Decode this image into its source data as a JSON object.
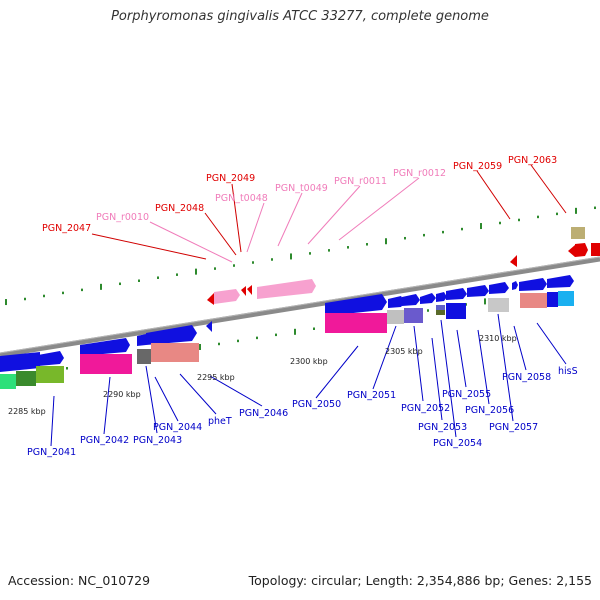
{
  "title": "Porphyromonas gingivalis ATCC 33277, complete genome",
  "footer": {
    "accession": "Accession: NC_010729",
    "stats": "Topology: circular; Length: 2,354,886 bp; Genes: 2,155"
  },
  "colors": {
    "backbone": "#888888",
    "tick": "#2d8a2d",
    "label_gene": "#0000c8",
    "label_highlight": "#e00000",
    "label_rna": "#f07cba",
    "gene_blue": "#0a0ae6",
    "gene_pink": "#f7a1cf"
  },
  "scale_labels": [
    {
      "id": "kbp-2285",
      "text": "2285 kbp"
    },
    {
      "id": "kbp-2290",
      "text": "2290 kbp"
    },
    {
      "id": "kbp-2295",
      "text": "2295 kbp"
    },
    {
      "id": "kbp-2300",
      "text": "2300 kbp"
    },
    {
      "id": "kbp-2305",
      "text": "2305 kbp"
    },
    {
      "id": "kbp-2310",
      "text": "2310 kbp"
    }
  ],
  "top_labels": [
    {
      "id": "pgn-2047",
      "text": "PGN_2047",
      "type": "highlight"
    },
    {
      "id": "pgn-r0010",
      "text": "PGN_r0010",
      "type": "rna"
    },
    {
      "id": "pgn-2048",
      "text": "PGN_2048",
      "type": "highlight"
    },
    {
      "id": "pgn-2049",
      "text": "PGN_2049",
      "type": "highlight"
    },
    {
      "id": "pgn-t0048",
      "text": "PGN_t0048",
      "type": "rna"
    },
    {
      "id": "pgn-t0049",
      "text": "PGN_t0049",
      "type": "rna"
    },
    {
      "id": "pgn-r0011",
      "text": "PGN_r0011",
      "type": "rna"
    },
    {
      "id": "pgn-r0012",
      "text": "PGN_r0012",
      "type": "rna"
    },
    {
      "id": "pgn-2059",
      "text": "PGN_2059",
      "type": "highlight"
    },
    {
      "id": "pgn-2063",
      "text": "PGN_2063",
      "type": "highlight"
    }
  ],
  "bottom_labels": [
    {
      "id": "pgn-2041",
      "text": "PGN_2041"
    },
    {
      "id": "pgn-2042",
      "text": "PGN_2042"
    },
    {
      "id": "pgn-2043",
      "text": "PGN_2043"
    },
    {
      "id": "pgn-2044",
      "text": "PGN_2044"
    },
    {
      "id": "phet",
      "text": "pheT"
    },
    {
      "id": "pgn-2046",
      "text": "PGN_2046"
    },
    {
      "id": "pgn-2050",
      "text": "PGN_2050"
    },
    {
      "id": "pgn-2051",
      "text": "PGN_2051"
    },
    {
      "id": "pgn-2052",
      "text": "PGN_2052"
    },
    {
      "id": "pgn-2053",
      "text": "PGN_2053"
    },
    {
      "id": "pgn-2054",
      "text": "PGN_2054"
    },
    {
      "id": "pgn-2055",
      "text": "PGN_2055"
    },
    {
      "id": "pgn-2056",
      "text": "PGN_2056"
    },
    {
      "id": "pgn-2057",
      "text": "PGN_2057"
    },
    {
      "id": "pgn-2058",
      "text": "PGN_2058"
    },
    {
      "id": "hiss",
      "text": "hisS"
    }
  ]
}
